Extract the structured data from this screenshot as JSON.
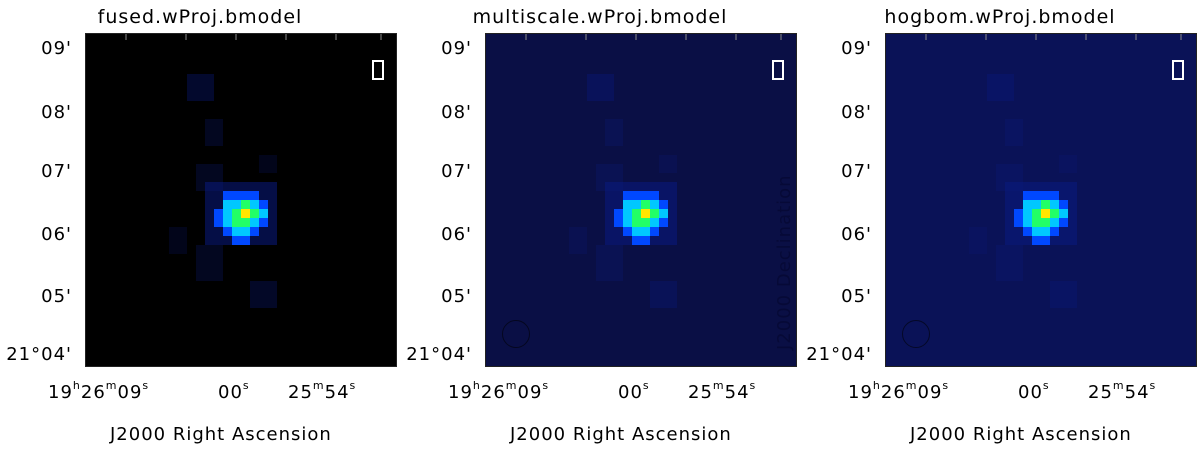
{
  "panels": [
    {
      "id": "fused",
      "title": "fused.wProj.bmodel",
      "background": "#000000",
      "show_beam": false
    },
    {
      "id": "multiscale",
      "title": "multiscale.wProj.bmodel",
      "background": "#0a0f45",
      "show_beam": true
    },
    {
      "id": "hogbom",
      "title": "hogbom.wProj.bmodel",
      "background": "#0a1257",
      "show_beam": true
    }
  ],
  "y_axis": {
    "ticks": [
      "09'",
      "08'",
      "07'",
      "06'",
      "05'",
      "21°04'"
    ],
    "title": "J2000 Declination"
  },
  "x_axis": {
    "ticks": [
      {
        "hours": "19",
        "h": "h",
        "minutes": "26",
        "m": "m",
        "seconds": "09",
        "s": "s"
      },
      {
        "seconds": "00",
        "s": "s"
      },
      {
        "minutes": "25",
        "m": "m",
        "seconds": "54",
        "s": "s"
      }
    ],
    "title": "J2000 Right Ascension"
  },
  "stokes_marker": "I",
  "colors": {
    "peak": "#ffe600",
    "high": "#22ff66",
    "mid": "#00c8ff",
    "low": "#0048ff",
    "faint": "#0a1a80"
  }
}
